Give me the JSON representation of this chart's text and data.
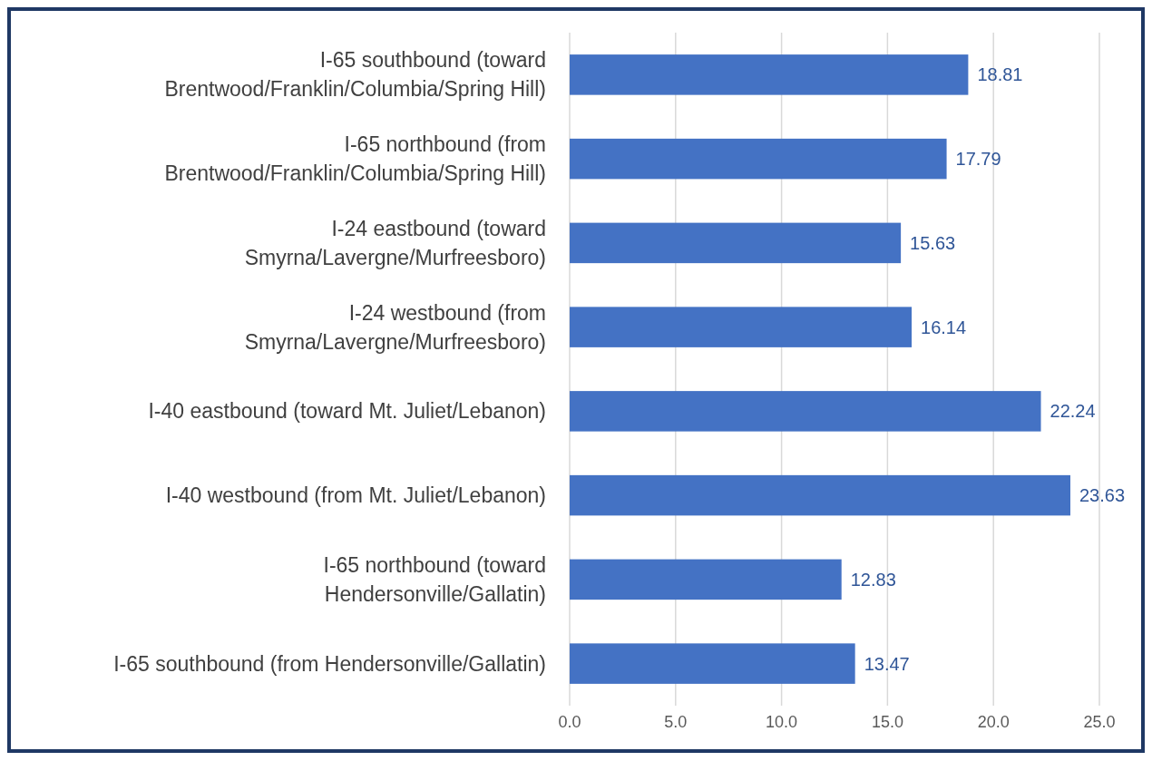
{
  "chart_data": {
    "type": "bar",
    "orientation": "horizontal",
    "categories": [
      "I-65 southbound (toward Brentwood/Franklin/Columbia/Spring Hill)",
      "I-65 northbound (from Brentwood/Franklin/Columbia/Spring Hill)",
      "I-24 eastbound (toward Smyrna/Lavergne/Murfreesboro)",
      "I-24 westbound (from Smyrna/Lavergne/Murfreesboro)",
      "I-40 eastbound (toward Mt. Juliet/Lebanon)",
      "I-40 westbound (from Mt. Juliet/Lebanon)",
      "I-65 northbound (toward Hendersonville/Gallatin)",
      "I-65 southbound (from Hendersonville/Gallatin)"
    ],
    "values": [
      18.81,
      17.79,
      15.63,
      16.14,
      22.24,
      23.63,
      12.83,
      13.47
    ],
    "color": "#4472c4",
    "xlim": [
      0,
      25
    ],
    "xticks": [
      {
        "value": 0,
        "label": "0.0"
      },
      {
        "value": 5,
        "label": "5.0"
      },
      {
        "value": 10,
        "label": "10.0"
      },
      {
        "value": 15,
        "label": "15.0"
      },
      {
        "value": 20,
        "label": "20.0"
      },
      {
        "value": 25,
        "label": "25.0"
      }
    ],
    "grid": "x",
    "data_labels": true
  }
}
